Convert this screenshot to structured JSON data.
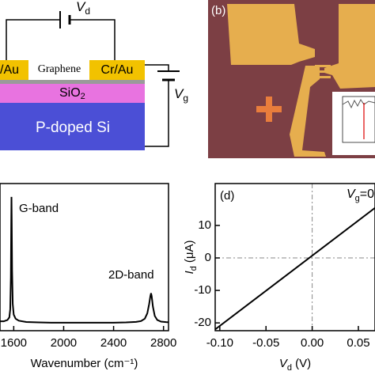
{
  "diagram": {
    "vd": [
      "V",
      "d"
    ],
    "vg": [
      "V",
      "g"
    ],
    "left_pad": "/Au",
    "graphene": "Graphene",
    "right_pad": "Cr/Au",
    "oxide": [
      "SiO",
      "2"
    ],
    "substrate": "P-doped Si",
    "image_label": "(b)"
  },
  "chart_data": [
    {
      "type": "line",
      "x_label": "Wavenumber (cm⁻¹)",
      "annotations": [
        "G-band",
        "2D-band"
      ],
      "x": [
        1490,
        1520,
        1550,
        1565,
        1572,
        1577,
        1580,
        1582,
        1584,
        1587,
        1592,
        1600,
        1615,
        1640,
        1700,
        1800,
        1900,
        2000,
        2100,
        2200,
        2300,
        2400,
        2500,
        2580,
        2620,
        2650,
        2670,
        2685,
        2695,
        2700,
        2705,
        2715,
        2730,
        2750,
        2780,
        2820,
        2840
      ],
      "values": [
        0.07,
        0.07,
        0.08,
        0.1,
        0.16,
        0.4,
        0.8,
        1.0,
        0.82,
        0.45,
        0.2,
        0.12,
        0.09,
        0.075,
        0.065,
        0.062,
        0.06,
        0.06,
        0.06,
        0.06,
        0.06,
        0.06,
        0.062,
        0.066,
        0.072,
        0.09,
        0.13,
        0.2,
        0.26,
        0.28,
        0.26,
        0.18,
        0.11,
        0.08,
        0.068,
        0.064,
        0.063
      ],
      "color": "#000000",
      "xlim": [
        1490,
        2840
      ],
      "ylim": [
        0,
        1.1
      ],
      "xticks": [
        1600,
        2000,
        2400,
        2800
      ]
    },
    {
      "type": "line",
      "panel_label": "(d)",
      "x_label": [
        "V",
        "d",
        " (V)"
      ],
      "y_label": [
        "I",
        "d",
        " (μA)"
      ],
      "annotation": [
        "V",
        "g",
        "=0"
      ],
      "x": [
        -0.105,
        0.068
      ],
      "values": [
        -22,
        15.4
      ],
      "color": "#000000",
      "xlim": [
        -0.105,
        0.068
      ],
      "ylim": [
        -22.4,
        22.9
      ],
      "xticks": [
        {
          "value": -0.1,
          "label": "-0.10"
        },
        -0.05,
        {
          "value": 0,
          "label": "0.00"
        },
        0.05
      ],
      "yticks": [
        10,
        0,
        -10,
        -20
      ],
      "zero_lines": true
    }
  ]
}
